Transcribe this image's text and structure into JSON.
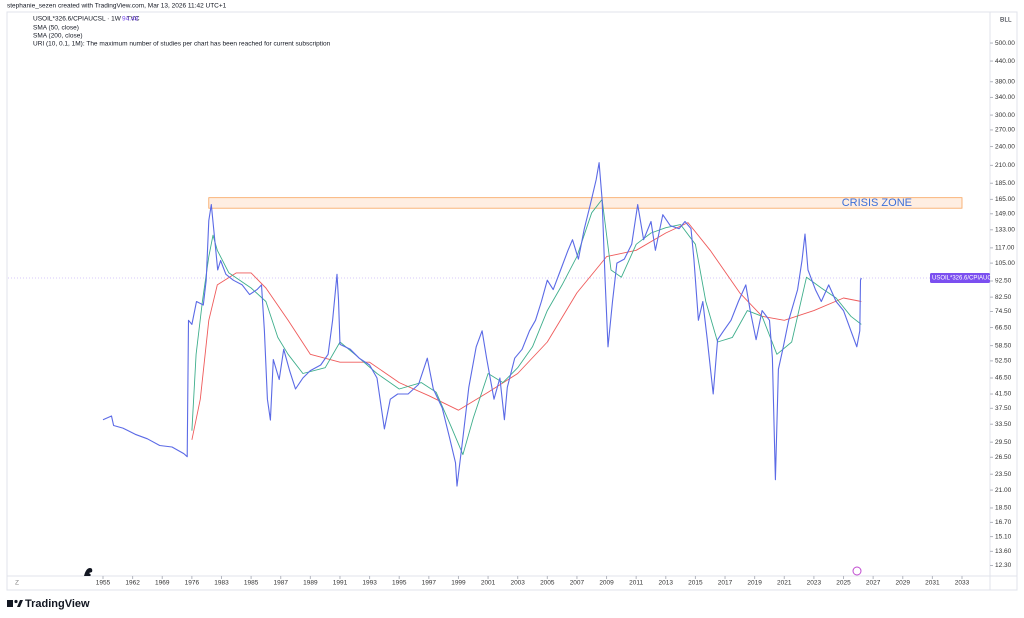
{
  "chart_data": {
    "type": "line",
    "credit": "stephanie_sezen created with TradingView.com, Mar 13, 2026 11:42 UTC+1",
    "symbol": "USOIL*326.6/CPIAUCSL · 1W · TVC",
    "last_value": 94.48,
    "last_value_label": "94.48",
    "study_note": "URI (10, 0.1, 1M): The maximum number of studies per chart has been reached for current subscription",
    "scale_button": "BLL",
    "zoom_button": "Z",
    "brand": "TradingView",
    "log_scale": true,
    "grid": false,
    "xlim": [
      1952,
      2035
    ],
    "xticks": [
      1955,
      1962,
      1969,
      1976,
      1983,
      1985,
      1987,
      1989,
      1991,
      1993,
      1995,
      1997,
      1999,
      2001,
      2003,
      2005,
      2007,
      2009,
      2011,
      2013,
      2015,
      2017,
      2019,
      2021,
      2023,
      2025,
      2027,
      2029,
      2031,
      2033
    ],
    "ylim": [
      11.5,
      610
    ],
    "yticks": [
      {
        "value": 12.3,
        "label": "12.30"
      },
      {
        "value": 13.6,
        "label": "13.60"
      },
      {
        "value": 15.1,
        "label": "15.10"
      },
      {
        "value": 16.7,
        "label": "16.70"
      },
      {
        "value": 18.5,
        "label": "18.50"
      },
      {
        "value": 21,
        "label": "21.00"
      },
      {
        "value": 23.5,
        "label": "23.50"
      },
      {
        "value": 26.5,
        "label": "26.50"
      },
      {
        "value": 29.5,
        "label": "29.50"
      },
      {
        "value": 33.5,
        "label": "33.50"
      },
      {
        "value": 37.5,
        "label": "37.50"
      },
      {
        "value": 41.5,
        "label": "41.50"
      },
      {
        "value": 46.5,
        "label": "46.50"
      },
      {
        "value": 52.5,
        "label": "52.50"
      },
      {
        "value": 58.5,
        "label": "58.50"
      },
      {
        "value": 66.5,
        "label": "66.50"
      },
      {
        "value": 74.5,
        "label": "74.50"
      },
      {
        "value": 82.5,
        "label": "82.50"
      },
      {
        "value": 92.5,
        "label": "92.50"
      },
      {
        "value": 105,
        "label": "105.00"
      },
      {
        "value": 117,
        "label": "117.00"
      },
      {
        "value": 133,
        "label": "133.00"
      },
      {
        "value": 149,
        "label": "149.00"
      },
      {
        "value": 165,
        "label": "165.00"
      },
      {
        "value": 185,
        "label": "185.00"
      },
      {
        "value": 210,
        "label": "210.00"
      },
      {
        "value": 240,
        "label": "240.00"
      },
      {
        "value": 270,
        "label": "270.00"
      },
      {
        "value": 300,
        "label": "300.00"
      },
      {
        "value": 340,
        "label": "340.00"
      },
      {
        "value": 380,
        "label": "380.00"
      },
      {
        "value": 440,
        "label": "440.00"
      },
      {
        "value": 500,
        "label": "500.00"
      }
    ],
    "annotation": {
      "text": "CRISIS ZONE",
      "x": [
        1980,
        2033
      ],
      "y": [
        155,
        167
      ],
      "color": "#f7a35c"
    },
    "series": [
      {
        "name": "USOIL*326.6/CPIAUCSL",
        "color": "#5b6ae6",
        "x": [
          1955,
          1957,
          1957.5,
          1959.7,
          1962.6,
          1965.5,
          1968.4,
          1971.3,
          1974.1,
          1974.9,
          1975.2,
          1976,
          1977.1,
          1978.7,
          1979.4,
          1980,
          1980.6,
          1981.3,
          1982.1,
          1982.8,
          1983.3,
          1983.8,
          1984.4,
          1984.9,
          1985.4,
          1985.7,
          1985.9,
          1986.1,
          1986.3,
          1986.5,
          1986.9,
          1987.2,
          1987.6,
          1988,
          1988.5,
          1989,
          1989.7,
          1990.2,
          1990.5,
          1990.8,
          1990.9,
          1991,
          1991.7,
          1992.3,
          1993,
          1993.5,
          1994,
          1994.4,
          1994.9,
          1995.6,
          1996.3,
          1996.9,
          1997.3,
          1997.9,
          1998.4,
          1998.8,
          1998.9,
          1999.3,
          1999.7,
          2000.2,
          2000.6,
          2000.9,
          2001.4,
          2001.8,
          2002.1,
          2002.3,
          2002.8,
          2003.3,
          2003.8,
          2004.2,
          2004.6,
          2005,
          2005.4,
          2005.9,
          2006.4,
          2006.7,
          2007.1,
          2007.5,
          2007.9,
          2008.3,
          2008.5,
          2008.7,
          2008.9,
          2009.1,
          2009.4,
          2009.7,
          2010.2,
          2010.7,
          2011.1,
          2011.5,
          2012,
          2012.3,
          2012.8,
          2013.3,
          2013.9,
          2014.3,
          2014.7,
          2014.9,
          2015.2,
          2015.5,
          2015.8,
          2016.2,
          2016.5,
          2016.9,
          2017.4,
          2017.9,
          2018.4,
          2018.7,
          2019.1,
          2019.5,
          2020,
          2020.2,
          2020.4,
          2020.6,
          2020.9,
          2021.3,
          2021.9,
          2022.2,
          2022.4,
          2022.6,
          2023.1,
          2023.5,
          2024,
          2024.5,
          2025,
          2025.5,
          2025.9,
          2026.1,
          2026.15,
          2026.2
        ],
        "values": [
          34.6,
          35.5,
          33.2,
          32.6,
          31.2,
          30.2,
          28.8,
          28.5,
          27.2,
          26.6,
          70,
          68,
          80,
          78,
          93,
          142,
          159,
          128,
          100,
          107,
          97,
          93,
          90,
          84,
          87,
          90,
          65,
          40,
          34.5,
          53,
          46,
          57,
          49,
          43,
          46.5,
          49,
          51,
          55,
          70,
          97,
          81,
          59,
          57,
          53.5,
          51,
          46.5,
          32.4,
          40,
          41.5,
          41.5,
          44.4,
          53.5,
          43,
          37.6,
          30.4,
          25.5,
          21.6,
          30.4,
          43.5,
          58,
          65,
          53.5,
          40,
          46.5,
          34.6,
          43.5,
          53.5,
          57,
          65,
          70,
          80,
          93,
          87,
          100,
          115,
          124,
          108,
          134,
          159,
          190,
          214,
          165,
          93,
          58,
          80,
          105,
          108,
          120,
          159,
          124,
          141,
          115,
          148,
          137,
          134,
          141,
          134,
          108,
          70,
          80,
          61,
          41.5,
          61,
          65,
          70,
          80,
          90,
          75,
          61,
          75,
          70,
          53.5,
          22.6,
          49.5,
          57,
          70,
          87,
          107,
          129,
          100,
          87,
          80,
          90,
          80,
          75,
          65,
          58,
          65,
          93,
          94.48
        ]
      },
      {
        "name": "SMA (50, close)",
        "color": "#3fae8c",
        "x": [
          1976,
          1977,
          1978.5,
          1980,
          1981,
          1982,
          1983.5,
          1985,
          1986,
          1986.8,
          1987.5,
          1988.5,
          1990,
          1991,
          1992,
          1993.5,
          1995,
          1996.5,
          1997.5,
          1998.5,
          1999.3,
          2000,
          2001,
          2002,
          2003,
          2004,
          2005,
          2006,
          2007,
          2008,
          2008.7,
          2009.3,
          2010,
          2011,
          2012,
          2013,
          2014,
          2015,
          2015.7,
          2016.5,
          2017.5,
          2018.5,
          2019.5,
          2020.5,
          2021.5,
          2022.5,
          2023.5,
          2024.5,
          2025.5,
          2026.2
        ],
        "values": [
          32,
          55,
          80,
          110,
          128,
          115,
          98,
          88,
          80,
          62,
          55,
          48,
          50,
          60,
          55,
          48,
          43,
          45,
          42,
          33,
          27,
          35,
          48,
          45,
          50,
          58,
          75,
          90,
          110,
          150,
          165,
          100,
          95,
          120,
          130,
          135,
          138,
          120,
          80,
          60,
          62,
          75,
          72,
          55,
          60,
          95,
          88,
          82,
          72,
          68
        ]
      },
      {
        "name": "SMA (200, close)",
        "color": "#ef5b5b",
        "x": [
          1976,
          1978,
          1980,
          1982,
          1984,
          1985,
          1986,
          1987.5,
          1989,
          1991,
          1993,
          1995,
          1997,
          1999,
          2001,
          2003,
          2005,
          2007,
          2009,
          2011,
          2013,
          2014.5,
          2016,
          2018,
          2019.5,
          2021,
          2023,
          2025,
          2026.2
        ],
        "values": [
          30,
          40,
          70,
          90,
          98,
          98,
          88,
          70,
          55,
          52,
          52,
          45,
          41,
          37,
          42,
          48,
          60,
          85,
          110,
          115,
          130,
          140,
          115,
          85,
          72,
          70,
          75,
          82,
          80
        ]
      }
    ]
  }
}
